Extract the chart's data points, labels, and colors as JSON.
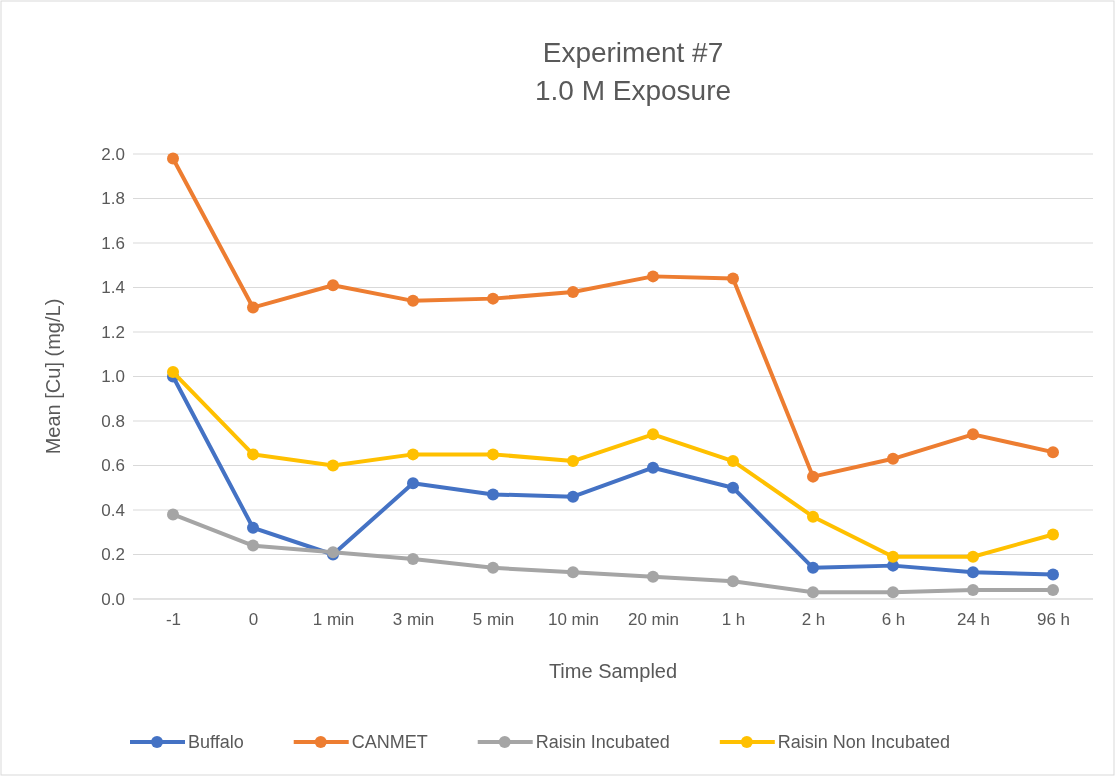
{
  "chart_data": {
    "type": "line",
    "title": "Experiment #7\n1.0 M Exposure",
    "xlabel": "Time Sampled",
    "ylabel": "Mean [Cu] (mg/L)",
    "categories": [
      "-1",
      "0",
      "1 min",
      "3 min",
      "5 min",
      "10 min",
      "20 min",
      "1 h",
      "2 h",
      "6 h",
      "24 h",
      "96 h"
    ],
    "series": [
      {
        "name": "Buffalo",
        "color": "#4472c4",
        "values": [
          1.0,
          0.32,
          0.2,
          0.52,
          0.47,
          0.46,
          0.59,
          0.5,
          0.14,
          0.15,
          0.12,
          0.11
        ]
      },
      {
        "name": "CANMET",
        "color": "#ed7d31",
        "values": [
          1.98,
          1.31,
          1.41,
          1.34,
          1.35,
          1.38,
          1.45,
          1.44,
          0.55,
          0.63,
          0.74,
          0.66
        ]
      },
      {
        "name": "Raisin Incubated",
        "color": "#a5a5a5",
        "values": [
          0.38,
          0.24,
          0.21,
          0.18,
          0.14,
          0.12,
          0.1,
          0.08,
          0.03,
          0.03,
          0.04,
          0.04
        ]
      },
      {
        "name": "Raisin Non Incubated",
        "color": "#ffc000",
        "values": [
          1.02,
          0.65,
          0.6,
          0.65,
          0.65,
          0.62,
          0.74,
          0.62,
          0.37,
          0.19,
          0.19,
          0.29
        ]
      }
    ],
    "ylim": [
      0,
      2.0
    ],
    "yticks": [
      {
        "value": 0,
        "label": "0.0"
      },
      {
        "value": 0.2,
        "label": "0.2"
      },
      {
        "value": 0.4,
        "label": "0.4"
      },
      {
        "value": 0.6,
        "label": "0.6"
      },
      {
        "value": 0.8,
        "label": "0.8"
      },
      {
        "value": 1.0,
        "label": "1.0"
      },
      {
        "value": 1.2,
        "label": "1.2"
      },
      {
        "value": 1.4,
        "label": "1.4"
      },
      {
        "value": 1.6,
        "label": "1.6"
      },
      {
        "value": 1.8,
        "label": "1.8"
      },
      {
        "value": 2.0,
        "label": "2.0"
      }
    ],
    "grid": "y",
    "legend": "bottom",
    "marker": "circle",
    "line_style": "solid"
  }
}
